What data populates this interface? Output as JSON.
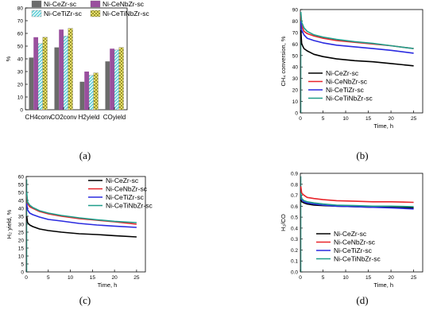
{
  "chart_data": [
    {
      "panel": "(a)",
      "type": "bar",
      "categories": [
        "CH4conv",
        "CO2conv",
        "H2yield",
        "COyield"
      ],
      "series": [
        {
          "name": "Ni-CeZr-sc",
          "values": [
            41,
            49,
            22,
            38
          ],
          "color": "#6b6b6b",
          "pattern": "solid"
        },
        {
          "name": "Ni-CeNbZr-sc",
          "values": [
            57,
            63,
            30,
            48
          ],
          "color": "#9a4f9e",
          "pattern": "solid"
        },
        {
          "name": "Ni-CeTiZr-sc",
          "values": [
            52,
            58,
            27,
            47
          ],
          "color": "#5fd0d8",
          "pattern": "diagonal"
        },
        {
          "name": "Ni-CeTiNbZr-sc",
          "values": [
            57,
            64,
            29,
            49
          ],
          "color": "#e8e06a",
          "pattern": "checker"
        }
      ],
      "xlabel": "",
      "ylabel": "%",
      "ylim": [
        0,
        80
      ],
      "yticks": [
        0,
        10,
        20,
        30,
        40,
        50,
        60,
        70,
        80
      ],
      "legend": "top"
    },
    {
      "panel": "(b)",
      "type": "line",
      "xlabel": "Time, h",
      "ylabel": "CH₄ conversion, %",
      "xlim": [
        0,
        27
      ],
      "ylim": [
        0,
        90
      ],
      "xticks": [
        0,
        5,
        10,
        15,
        20,
        25
      ],
      "yticks": [
        0,
        10,
        20,
        30,
        40,
        50,
        60,
        70,
        80,
        90
      ],
      "legend": "bottom-left",
      "series": [
        {
          "name": "Ni-CeZr-sc",
          "color": "#000000",
          "x": [
            0.1,
            0.3,
            0.8,
            1.5,
            3,
            5,
            8,
            12,
            16,
            20,
            25
          ],
          "y": [
            72,
            60,
            56,
            54,
            51,
            49,
            47,
            45.5,
            44.5,
            43,
            41
          ]
        },
        {
          "name": "Ni-CeNbZr-sc",
          "color": "#e8242a",
          "x": [
            0.1,
            0.3,
            0.8,
            1.5,
            3,
            5,
            8,
            12,
            16,
            20,
            25
          ],
          "y": [
            85,
            76,
            71,
            69,
            67,
            65,
            63,
            61.5,
            60,
            58.5,
            56
          ]
        },
        {
          "name": "Ni-CeTiZr-sc",
          "color": "#2b2be0",
          "x": [
            0.1,
            0.3,
            0.8,
            1.5,
            3,
            5,
            8,
            12,
            16,
            20,
            25
          ],
          "y": [
            80,
            72,
            68,
            65,
            63,
            61,
            59,
            57.5,
            56,
            54.5,
            52
          ]
        },
        {
          "name": "Ni-CeTiNbZr-sc",
          "color": "#1f9e8a",
          "x": [
            0.1,
            0.3,
            0.8,
            1.5,
            3,
            5,
            8,
            12,
            16,
            20,
            25
          ],
          "y": [
            88,
            79,
            74,
            71,
            68,
            66,
            64,
            62,
            60.5,
            58.5,
            56
          ]
        }
      ]
    },
    {
      "panel": "(c)",
      "type": "line",
      "xlabel": "Time, h",
      "ylabel": "H₂ yield, %",
      "xlim": [
        0,
        27
      ],
      "ylim": [
        0,
        60
      ],
      "xticks": [
        0,
        5,
        10,
        15,
        20,
        25
      ],
      "yticks": [
        0,
        5,
        10,
        15,
        20,
        25,
        30,
        35,
        40,
        45,
        50,
        55,
        60
      ],
      "legend": "top-right",
      "series": [
        {
          "name": "Ni-CeZr-sc",
          "color": "#000000",
          "x": [
            0.1,
            0.3,
            0.8,
            1.5,
            3,
            5,
            8,
            12,
            16,
            20,
            25
          ],
          "y": [
            35,
            31,
            29.5,
            28.5,
            27,
            26,
            25,
            24,
            23.5,
            22.8,
            22
          ]
        },
        {
          "name": "Ni-CeNbZr-sc",
          "color": "#e8242a",
          "x": [
            0.1,
            0.3,
            0.8,
            1.5,
            3,
            5,
            8,
            12,
            16,
            20,
            25
          ],
          "y": [
            48,
            43,
            41,
            40,
            38,
            36.5,
            35,
            33.5,
            32.5,
            31.5,
            30
          ]
        },
        {
          "name": "Ni-CeTiZr-sc",
          "color": "#2b2be0",
          "x": [
            0.1,
            0.3,
            0.8,
            1.5,
            3,
            5,
            8,
            12,
            16,
            20,
            25
          ],
          "y": [
            43,
            39,
            37,
            36,
            34.5,
            33,
            32,
            30.5,
            29.5,
            28.8,
            28
          ]
        },
        {
          "name": "Ni-CeTiNbZr-sc",
          "color": "#1f9e8a",
          "x": [
            0.1,
            0.3,
            0.8,
            1.5,
            3,
            5,
            8,
            12,
            16,
            20,
            25
          ],
          "y": [
            50,
            44,
            42,
            40.5,
            38.5,
            37,
            35.5,
            34,
            32.8,
            31.8,
            31
          ]
        }
      ]
    },
    {
      "panel": "(d)",
      "type": "line",
      "xlabel": "Time, h",
      "ylabel": "H₂/CO",
      "xlim": [
        0,
        27
      ],
      "ylim": [
        0,
        0.9
      ],
      "xticks": [
        0,
        5,
        10,
        15,
        20,
        25
      ],
      "yticks": [
        0.0,
        0.1,
        0.2,
        0.3,
        0.4,
        0.5,
        0.6,
        0.7,
        0.8,
        0.9
      ],
      "legend": "bottom-center",
      "series": [
        {
          "name": "Ni-CeZr-sc",
          "color": "#000000",
          "x": [
            0.1,
            0.3,
            0.8,
            1.5,
            3,
            5,
            8,
            12,
            16,
            20,
            25
          ],
          "y": [
            0.66,
            0.64,
            0.63,
            0.62,
            0.61,
            0.605,
            0.6,
            0.595,
            0.59,
            0.59,
            0.585
          ]
        },
        {
          "name": "Ni-CeNbZr-sc",
          "color": "#e8242a",
          "x": [
            0.1,
            0.3,
            0.8,
            1.5,
            3,
            5,
            8,
            12,
            16,
            20,
            25
          ],
          "y": [
            0.78,
            0.72,
            0.7,
            0.68,
            0.67,
            0.66,
            0.65,
            0.645,
            0.64,
            0.64,
            0.635
          ]
        },
        {
          "name": "Ni-CeTiZr-sc",
          "color": "#2b2be0",
          "x": [
            0.1,
            0.3,
            0.8,
            1.5,
            3,
            5,
            8,
            12,
            16,
            20,
            25
          ],
          "y": [
            0.7,
            0.66,
            0.64,
            0.63,
            0.62,
            0.61,
            0.6,
            0.595,
            0.59,
            0.585,
            0.575
          ]
        },
        {
          "name": "Ni-CeTiNbZr-sc",
          "color": "#1f9e8a",
          "x": [
            0.1,
            0.3,
            0.8,
            1.5,
            3,
            5,
            8,
            12,
            16,
            20,
            25
          ],
          "y": [
            0.72,
            0.67,
            0.65,
            0.64,
            0.63,
            0.62,
            0.61,
            0.605,
            0.6,
            0.6,
            0.595
          ]
        }
      ]
    }
  ]
}
